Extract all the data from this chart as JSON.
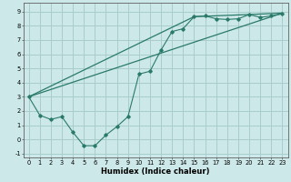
{
  "xlabel": "Humidex (Indice chaleur)",
  "bg_color": "#cce8e8",
  "grid_color": "#a8cccc",
  "line_color": "#2a7a6a",
  "xlim": [
    -0.5,
    23.5
  ],
  "ylim": [
    -1.3,
    9.6
  ],
  "xticks": [
    0,
    1,
    2,
    3,
    4,
    5,
    6,
    7,
    8,
    9,
    10,
    11,
    12,
    13,
    14,
    15,
    16,
    17,
    18,
    19,
    20,
    21,
    22,
    23
  ],
  "yticks": [
    -1,
    0,
    1,
    2,
    3,
    4,
    5,
    6,
    7,
    8,
    9
  ],
  "line1_x": [
    0,
    1,
    2,
    3,
    4,
    5,
    6,
    7,
    8,
    9,
    10,
    11,
    12,
    13,
    14,
    15,
    16,
    17,
    18,
    19,
    20,
    21,
    22,
    23
  ],
  "line1_y": [
    3.0,
    1.7,
    1.4,
    1.6,
    0.5,
    -0.45,
    -0.45,
    0.3,
    0.9,
    1.6,
    4.6,
    4.8,
    6.3,
    7.6,
    7.8,
    8.65,
    8.7,
    8.5,
    8.45,
    8.5,
    8.8,
    8.6,
    8.7,
    8.85
  ],
  "line2_x": [
    0,
    23
  ],
  "line2_y": [
    3.0,
    8.9
  ],
  "line3_x": [
    0,
    15,
    20,
    23
  ],
  "line3_y": [
    3.0,
    8.65,
    8.8,
    8.9
  ],
  "xlabel_fontsize": 6.0,
  "tick_fontsize": 4.8
}
